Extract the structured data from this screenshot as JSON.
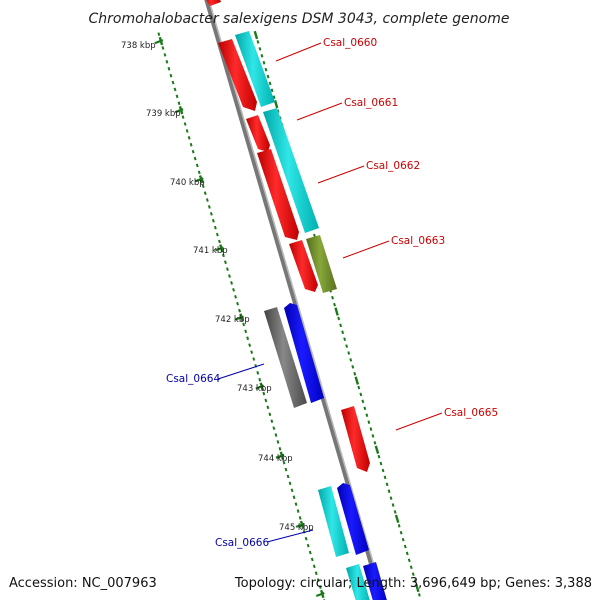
{
  "title": "Chromohalobacter salexigens DSM 3043, complete genome",
  "footer": {
    "accession": "Accession: NC_007963",
    "summary": "Topology: circular; Length: 3,696,649 bp; Genes: 3,388"
  },
  "colors": {
    "forward_cds": "#ff0000",
    "reverse_cds": "#0000ff",
    "forward_label": "#cc0000",
    "reverse_label": "#0000aa",
    "rna": "#00cccc",
    "misc_feature": "#6b8e23",
    "pseudo": "#666666",
    "backbone": "#888888",
    "ruler": "#1a7a1a"
  },
  "ruler_labels": [
    "738 kbp",
    "739 kbp",
    "740 kbp",
    "741 kbp",
    "742 kbp",
    "743 kbp",
    "744 kbp",
    "745 kbp"
  ],
  "genes": [
    {
      "label": "Csal_0660",
      "strand": "forward",
      "color": "#cc0000"
    },
    {
      "label": "Csal_0661",
      "strand": "forward",
      "color": "#cc0000"
    },
    {
      "label": "Csal_0662",
      "strand": "forward",
      "color": "#cc0000"
    },
    {
      "label": "Csal_0663",
      "strand": "forward",
      "color": "#cc0000"
    },
    {
      "label": "Csal_0664",
      "strand": "reverse",
      "color": "#0000aa"
    },
    {
      "label": "Csal_0665",
      "strand": "forward",
      "color": "#cc0000"
    },
    {
      "label": "Csal_0666",
      "strand": "reverse",
      "color": "#0000aa"
    }
  ]
}
